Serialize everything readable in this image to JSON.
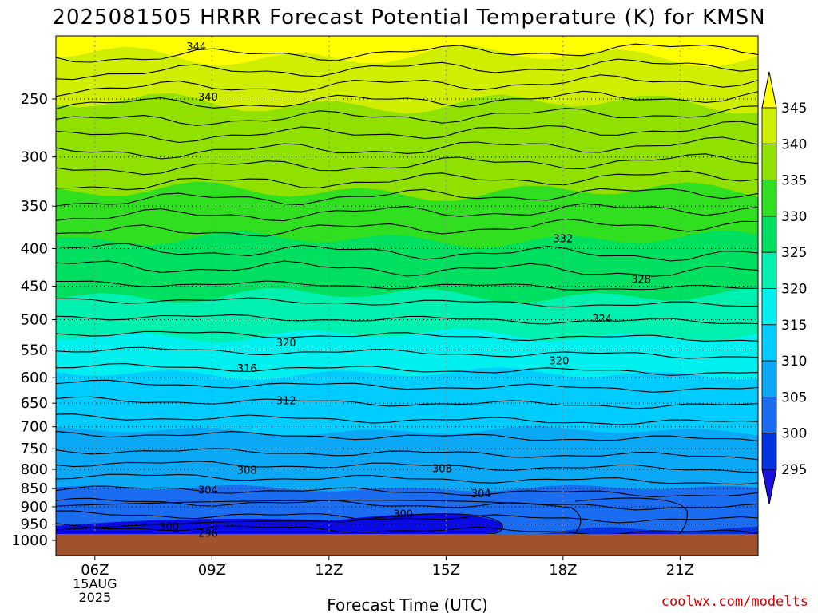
{
  "title": "2025081505 HRRR Forecast Potential Temperature (K) for KMSN",
  "xlabel": "Forecast Time (UTC)",
  "credit": "coolwx.com/modelts",
  "chart_data": {
    "type": "contour",
    "x_axis": {
      "ticks": [
        {
          "value": 6,
          "label": "06Z",
          "sub": [
            "15AUG",
            "2025"
          ]
        },
        {
          "value": 9,
          "label": "09Z"
        },
        {
          "value": 12,
          "label": "12Z"
        },
        {
          "value": 15,
          "label": "15Z"
        },
        {
          "value": 18,
          "label": "18Z"
        },
        {
          "value": 21,
          "label": "21Z"
        }
      ],
      "range": [
        5,
        23
      ]
    },
    "y_axis": {
      "scale": "log",
      "inverted": true,
      "ticks": [
        250,
        300,
        350,
        400,
        450,
        500,
        550,
        600,
        650,
        700,
        750,
        800,
        850,
        900,
        950,
        1000
      ],
      "range": [
        1040,
        200
      ]
    },
    "colorbar": {
      "levels": [
        295,
        300,
        305,
        310,
        315,
        320,
        325,
        330,
        335,
        340,
        345
      ],
      "labels": [
        "345",
        "340",
        "335",
        "330",
        "325",
        "320",
        "315",
        "310",
        "305",
        "300",
        "295"
      ],
      "colors": [
        "#1a10e0",
        "#0033dd",
        "#1a6df0",
        "#0aa8f5",
        "#00ccff",
        "#00f0f0",
        "#00f0b0",
        "#00e060",
        "#30e020",
        "#90e000",
        "#d0ef00",
        "#ffff00"
      ]
    },
    "ground_color": "#a0522d",
    "contour_labels": [
      {
        "text": "344",
        "x": 8.6,
        "p": 212
      },
      {
        "text": "340",
        "x": 8.9,
        "p": 248
      },
      {
        "text": "332",
        "x": 18.0,
        "p": 387
      },
      {
        "text": "328",
        "x": 20.0,
        "p": 440
      },
      {
        "text": "324",
        "x": 19.0,
        "p": 498
      },
      {
        "text": "320",
        "x": 10.9,
        "p": 537
      },
      {
        "text": "320",
        "x": 17.9,
        "p": 568
      },
      {
        "text": "316",
        "x": 9.9,
        "p": 582
      },
      {
        "text": "312",
        "x": 10.9,
        "p": 644
      },
      {
        "text": "308",
        "x": 9.9,
        "p": 801
      },
      {
        "text": "308",
        "x": 14.9,
        "p": 797
      },
      {
        "text": "304",
        "x": 8.9,
        "p": 853
      },
      {
        "text": "304",
        "x": 15.9,
        "p": 863
      },
      {
        "text": "300",
        "x": 13.9,
        "p": 920
      },
      {
        "text": "300",
        "x": 7.9,
        "p": 957
      },
      {
        "text": "296",
        "x": 8.9,
        "p": 976
      }
    ]
  }
}
